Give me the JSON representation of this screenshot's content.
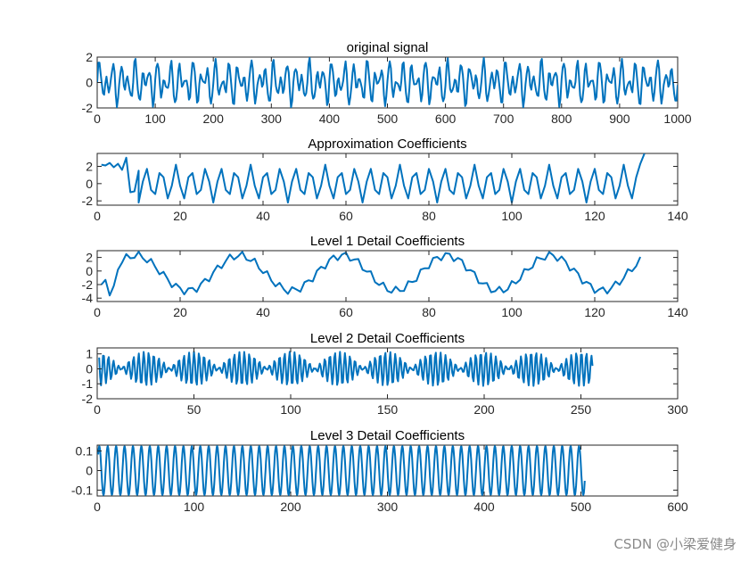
{
  "watermark": "CSDN @小梁爱健身",
  "colors": {
    "line": "#0072BD",
    "axis": "#262626",
    "background": "#ffffff"
  },
  "chart_data": [
    {
      "type": "line",
      "title": "original signal",
      "xlim": [
        0,
        1000
      ],
      "ylim": [
        -2,
        2
      ],
      "xticks": [
        0,
        100,
        200,
        300,
        400,
        500,
        600,
        700,
        800,
        900,
        1000
      ],
      "yticks": [
        -2,
        0,
        2
      ],
      "series": [
        {
          "pattern": "sum of sinusoids",
          "components": [
            {
              "amp": 1.0,
              "period": 12.5
            },
            {
              "amp": 0.8,
              "period": 20
            },
            {
              "amp": 0.25,
              "period": 7
            }
          ],
          "x_start": 0,
          "x_end": 1000,
          "step": 2
        }
      ]
    },
    {
      "type": "line",
      "title": "Approximation Coefficients",
      "xlim": [
        0,
        140
      ],
      "ylim": [
        -2.5,
        3.5
      ],
      "xticks": [
        0,
        20,
        40,
        60,
        80,
        100,
        120,
        140
      ],
      "yticks": [
        -2,
        0,
        2
      ],
      "series": [
        {
          "pattern": "periodic triangle, period ~3.6",
          "points": [
            [
              1,
              2.2
            ],
            [
              2,
              2.1
            ],
            [
              3,
              2.4
            ],
            [
              4,
              1.9
            ],
            [
              5,
              2.3
            ],
            [
              6,
              1.6
            ],
            [
              7,
              3.0
            ],
            [
              8,
              -1.0
            ],
            [
              9,
              -0.9
            ],
            [
              10,
              1.5
            ]
          ],
          "amp": 2.2,
          "period": 3.6,
          "x_start": 10,
          "x_end": 130,
          "end_points": [
            [
              131,
              2.3
            ],
            [
              132,
              3.5
            ]
          ]
        }
      ]
    },
    {
      "type": "line",
      "title": "Level 1 Detail Coefficients",
      "xlim": [
        0,
        140
      ],
      "ylim": [
        -4.5,
        3
      ],
      "xticks": [
        0,
        20,
        40,
        60,
        80,
        100,
        120,
        140
      ],
      "yticks": [
        -4,
        -2,
        0,
        2
      ],
      "series": [
        {
          "pattern": "slow sinusoid period ~25 plus ripple",
          "amp": 2.6,
          "period": 25,
          "offset": 0,
          "x_start": 1,
          "x_end": 131,
          "ripple_amp": 0.6,
          "start_points": [
            [
              1,
              -2.0
            ],
            [
              2,
              -1.3
            ],
            [
              3,
              -3.6
            ],
            [
              4,
              -2.2
            ],
            [
              5,
              0.2
            ]
          ]
        }
      ]
    },
    {
      "type": "line",
      "title": "Level 2 Detail Coefficients",
      "xlim": [
        0,
        300
      ],
      "ylim": [
        -2,
        1.4
      ],
      "xticks": [
        0,
        50,
        100,
        150,
        200,
        250,
        300
      ],
      "yticks": [
        -2,
        -1,
        0,
        1
      ],
      "series": [
        {
          "pattern": "beating oscillation",
          "amp": 1.15,
          "carrier_period": 2.6,
          "envelope_period": 25,
          "x_start": 1,
          "x_end": 256
        }
      ]
    },
    {
      "type": "line",
      "title": "Level 3 Detail Coefficients",
      "xlim": [
        0,
        600
      ],
      "ylim": [
        -0.13,
        0.13
      ],
      "xticks": [
        0,
        100,
        200,
        300,
        400,
        500,
        600
      ],
      "yticks": [
        -0.1,
        0,
        0.1
      ],
      "series": [
        {
          "pattern": "constant amplitude fast oscillation",
          "amp": 0.125,
          "carrier_period": 8.7,
          "x_start": 1,
          "x_end": 504
        }
      ]
    }
  ]
}
